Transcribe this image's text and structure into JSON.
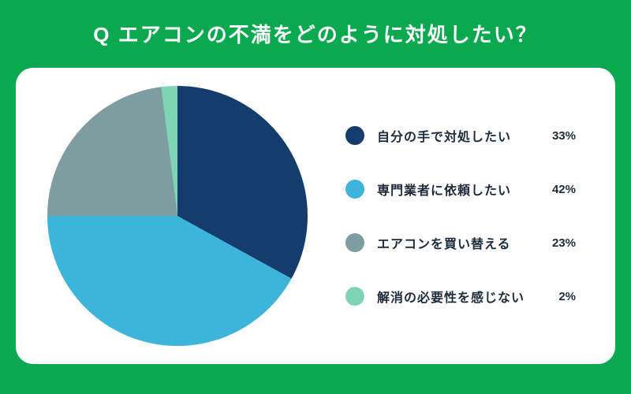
{
  "title": "Q エアコンの不満をどのように対処したい？",
  "chart_data": {
    "type": "pie",
    "title": "エアコンの不満をどのように対処したい？",
    "categories": [
      "自分の手で対処したい",
      "専門業者に依頼したい",
      "エアコンを買い替える",
      "解消の必要性を感じない"
    ],
    "values": [
      33,
      42,
      23,
      2
    ],
    "value_labels": [
      "33%",
      "42%",
      "23%",
      "2%"
    ],
    "colors": [
      "#143d6d",
      "#3db5da",
      "#7e9da0",
      "#7fd4b5"
    ],
    "start_angle_deg": 0,
    "direction": "clockwise",
    "legend_position": "right"
  },
  "colors": {
    "background": "#0aa84f",
    "card": "#ffffff",
    "title_text": "#ffffff",
    "legend_text": "#1c2b3c"
  }
}
